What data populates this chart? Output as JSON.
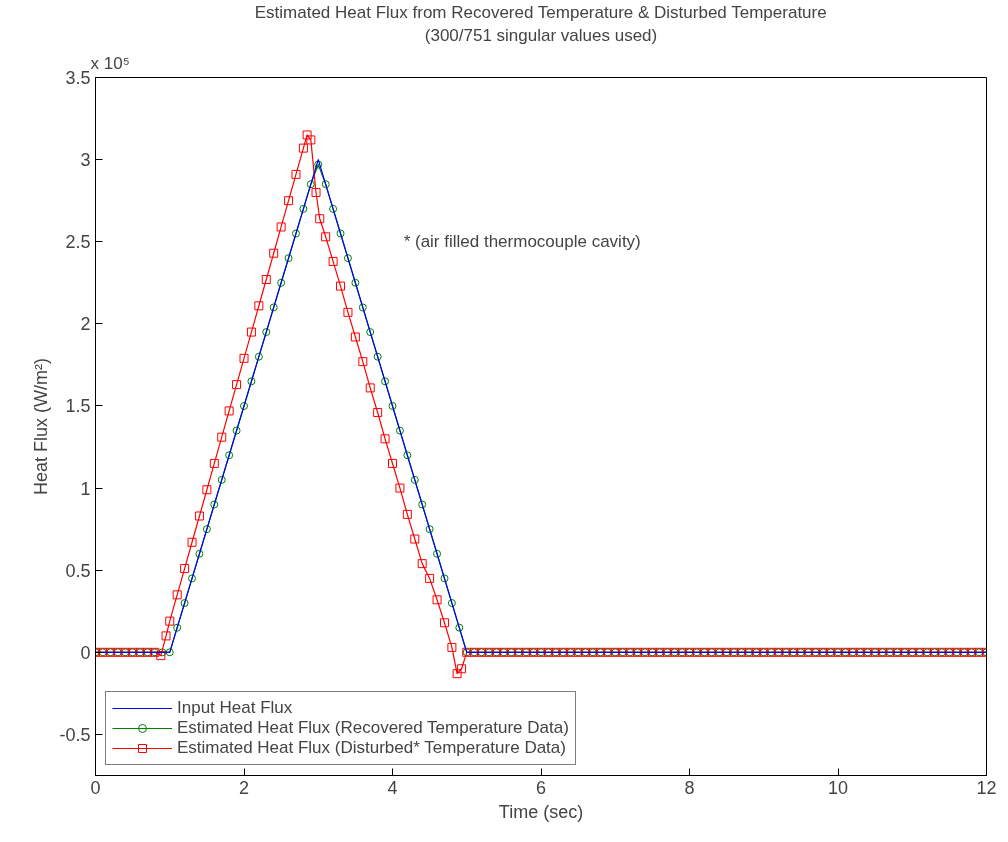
{
  "chart_data": {
    "type": "line",
    "title": "Estimated Heat Flux from Recovered Temperature & Disturbed Temperature",
    "subtitle": "(300/751 singular values used)",
    "xlabel": "Time (sec)",
    "ylabel": "Heat Flux (W/m²)",
    "annotations": [
      "x 10⁵",
      "* (air filled thermocouple cavity)"
    ],
    "xlim": [
      0,
      12
    ],
    "xticks": [
      0,
      2,
      4,
      6,
      8,
      10,
      12
    ],
    "ylim": [
      -0.75,
      3.5
    ],
    "yticks": [
      -0.5,
      0,
      0.5,
      1,
      1.5,
      2,
      2.5,
      3,
      3.5
    ],
    "grid": false,
    "legend": "bottom left",
    "series": [
      {
        "name": "Input Heat Flux",
        "color": "#0000ff",
        "marker": "none",
        "x": [
          0,
          1,
          3,
          5,
          12
        ],
        "values": [
          0,
          0,
          3,
          0,
          0
        ]
      },
      {
        "name": "Estimated Heat Flux (Recovered Temperature Data)",
        "color": "#008000",
        "marker": "circle",
        "x": [
          0,
          0.1,
          0.2,
          0.3,
          0.4,
          0.5,
          0.6,
          0.7,
          0.8,
          0.9,
          1.0,
          1.1,
          1.2,
          1.3,
          1.4,
          1.5,
          1.6,
          1.7,
          1.8,
          1.9,
          2.0,
          2.1,
          2.2,
          2.3,
          2.4,
          2.5,
          2.6,
          2.7,
          2.8,
          2.9,
          3.0,
          3.1,
          3.2,
          3.3,
          3.4,
          3.5,
          3.6,
          3.7,
          3.8,
          3.9,
          4.0,
          4.1,
          4.2,
          4.3,
          4.4,
          4.5,
          4.6,
          4.7,
          4.8,
          4.9,
          5.0,
          5.1,
          5.2,
          5.3,
          5.4,
          5.5,
          5.6,
          5.7,
          5.8,
          5.9,
          6.0,
          6.1,
          6.2,
          6.3,
          6.4,
          6.5,
          6.6,
          6.7,
          6.8,
          6.9,
          7.0,
          7.1,
          7.2,
          7.3,
          7.4,
          7.5,
          7.6,
          7.7,
          7.8,
          7.9,
          8.0,
          8.1,
          8.2,
          8.3,
          8.4,
          8.5,
          8.6,
          8.7,
          8.8,
          8.9,
          9.0,
          9.1,
          9.2,
          9.3,
          9.4,
          9.5,
          9.6,
          9.7,
          9.8,
          9.9,
          10.0,
          10.1,
          10.2,
          10.3,
          10.4,
          10.5,
          10.6,
          10.7,
          10.8,
          10.9,
          11.0,
          11.1,
          11.2,
          11.3,
          11.4,
          11.5,
          11.6,
          11.7,
          11.8,
          11.9,
          12.0
        ],
        "values": [
          0,
          0,
          0,
          0,
          0,
          0,
          0,
          0,
          0,
          0,
          0,
          0.15,
          0.3,
          0.45,
          0.6,
          0.75,
          0.9,
          1.05,
          1.2,
          1.35,
          1.5,
          1.65,
          1.8,
          1.95,
          2.1,
          2.25,
          2.4,
          2.55,
          2.7,
          2.85,
          2.97,
          2.85,
          2.7,
          2.55,
          2.4,
          2.25,
          2.1,
          1.95,
          1.8,
          1.65,
          1.5,
          1.35,
          1.2,
          1.05,
          0.9,
          0.75,
          0.6,
          0.45,
          0.3,
          0.15,
          0,
          0,
          0,
          0,
          0,
          0,
          0,
          0,
          0,
          0,
          0,
          0,
          0,
          0,
          0,
          0,
          0,
          0,
          0,
          0,
          0,
          0,
          0,
          0,
          0,
          0,
          0,
          0,
          0,
          0,
          0,
          0,
          0,
          0,
          0,
          0,
          0,
          0,
          0,
          0,
          0,
          0,
          0,
          0,
          0,
          0,
          0,
          0,
          0,
          0,
          0,
          0,
          0,
          0,
          0,
          0,
          0,
          0,
          0,
          0,
          0,
          0,
          0,
          0,
          0,
          0,
          0,
          0,
          0,
          0,
          0
        ]
      },
      {
        "name": "Estimated Heat Flux (Disturbed* Temperature Data)",
        "color": "#ff0000",
        "marker": "square",
        "x": [
          0,
          0.1,
          0.2,
          0.3,
          0.4,
          0.5,
          0.6,
          0.7,
          0.8,
          0.88,
          0.95,
          1.0,
          1.1,
          1.2,
          1.3,
          1.4,
          1.5,
          1.6,
          1.7,
          1.8,
          1.9,
          2.0,
          2.1,
          2.2,
          2.3,
          2.4,
          2.5,
          2.6,
          2.7,
          2.8,
          2.85,
          2.9,
          2.97,
          3.02,
          3.1,
          3.2,
          3.3,
          3.4,
          3.5,
          3.6,
          3.7,
          3.8,
          3.9,
          4.0,
          4.1,
          4.2,
          4.3,
          4.4,
          4.5,
          4.6,
          4.7,
          4.8,
          4.87,
          4.93,
          5.0,
          5.1,
          5.2,
          5.3,
          5.4,
          5.5,
          5.6,
          5.7,
          5.8,
          5.9,
          6.0,
          6.1,
          6.2,
          6.3,
          6.4,
          6.5,
          6.6,
          6.7,
          6.8,
          6.9,
          7.0,
          7.1,
          7.2,
          7.3,
          7.4,
          7.5,
          7.6,
          7.7,
          7.8,
          7.9,
          8.0,
          8.1,
          8.2,
          8.3,
          8.4,
          8.5,
          8.6,
          8.7,
          8.8,
          8.9,
          9.0,
          9.1,
          9.2,
          9.3,
          9.4,
          9.5,
          9.6,
          9.7,
          9.8,
          9.9,
          10.0,
          10.1,
          10.2,
          10.3,
          10.4,
          10.5,
          10.6,
          10.7,
          10.8,
          10.9,
          11.0,
          11.1,
          11.2,
          11.3,
          11.4,
          11.5,
          11.6,
          11.7,
          11.8,
          11.9,
          12.0
        ],
        "values": [
          0,
          0,
          0,
          0,
          0,
          0,
          0,
          0,
          0,
          -0.02,
          0.1,
          0.19,
          0.35,
          0.51,
          0.67,
          0.83,
          0.99,
          1.15,
          1.31,
          1.47,
          1.63,
          1.79,
          1.95,
          2.11,
          2.27,
          2.43,
          2.59,
          2.75,
          2.91,
          3.07,
          3.15,
          3.12,
          2.8,
          2.64,
          2.53,
          2.38,
          2.23,
          2.07,
          1.92,
          1.77,
          1.61,
          1.46,
          1.3,
          1.15,
          1.0,
          0.84,
          0.69,
          0.54,
          0.45,
          0.32,
          0.18,
          0.03,
          -0.13,
          -0.1,
          0,
          0,
          0,
          0,
          0,
          0,
          0,
          0,
          0,
          0,
          0,
          0,
          0,
          0,
          0,
          0,
          0,
          0,
          0,
          0,
          0,
          0,
          0,
          0,
          0,
          0,
          0,
          0,
          0,
          0,
          0,
          0,
          0,
          0,
          0,
          0,
          0,
          0,
          0,
          0,
          0,
          0,
          0,
          0,
          0,
          0,
          0,
          0,
          0,
          0,
          0,
          0,
          0,
          0,
          0,
          0,
          0,
          0,
          0,
          0,
          0,
          0,
          0,
          0,
          0,
          0,
          0,
          0,
          0,
          0,
          0
        ]
      }
    ]
  }
}
